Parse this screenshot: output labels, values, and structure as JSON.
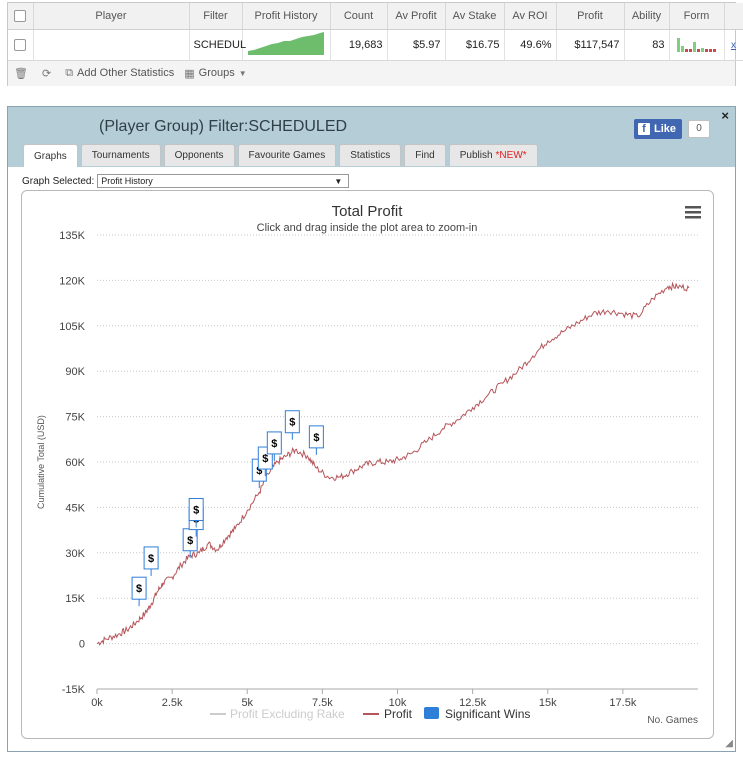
{
  "table": {
    "headers": [
      "",
      "Player",
      "Filter",
      "Profit History",
      "Count",
      "Av Profit",
      "Av Stake",
      "Av ROI",
      "Profit",
      "Ability",
      "Form",
      ""
    ],
    "row": {
      "filter": "SCHEDUL",
      "count": "19,683",
      "av_profit": "$5.97",
      "av_stake": "$16.75",
      "av_roi": "49.6%",
      "profit": "$117,547",
      "ability": "83",
      "remove": "x"
    }
  },
  "toolbar": {
    "add_stats": "Add Other Statistics",
    "groups": "Groups"
  },
  "panel": {
    "title": "(Player Group) Filter:SCHEDULED",
    "close": "×",
    "fb_like": "Like",
    "fb_count": "0",
    "tabs": [
      {
        "label": "Graphs"
      },
      {
        "label": "Tournaments"
      },
      {
        "label": "Opponents"
      },
      {
        "label": "Favourite Games"
      },
      {
        "label": "Statistics"
      },
      {
        "label": "Find"
      },
      {
        "label": "Publish",
        "badge": "*NEW*"
      }
    ],
    "graph_select_label": "Graph Selected:",
    "graph_select_value": "Profit History"
  },
  "colors": {
    "profit_line": "#b5565a",
    "excl_rake_line": "#cccccc",
    "significant_wins": "#2f7ed8",
    "sparkline": "#6dbd6d",
    "header_bg": "#b5cdd6"
  },
  "chart_data": {
    "type": "line",
    "title": "Total Profit",
    "subtitle": "Click and drag inside the plot area to zoom-in",
    "xlabel": "No. Games",
    "ylabel": "Cumulative Total (USD)",
    "xlim": [
      0,
      20000
    ],
    "ylim": [
      -15000,
      135000
    ],
    "x_ticks": [
      "0k",
      "2.5k",
      "5k",
      "7.5k",
      "10k",
      "12.5k",
      "15k",
      "17.5k"
    ],
    "y_ticks": [
      "-15K",
      "0",
      "15K",
      "30K",
      "45K",
      "60K",
      "75K",
      "90K",
      "105K",
      "120K",
      "135K"
    ],
    "grid": "horizontal-dotted",
    "legend": {
      "placement": "bottom-center",
      "items": [
        "Profit Excluding Rake",
        "Profit",
        "Significant Wins"
      ]
    },
    "series": [
      {
        "name": "Profit",
        "x": [
          0,
          300,
          700,
          1000,
          1300,
          1600,
          1800,
          2000,
          2200,
          2500,
          2800,
          3100,
          3400,
          3700,
          4000,
          4300,
          4600,
          5000,
          5400,
          5700,
          6000,
          6300,
          6600,
          7000,
          7300,
          7700,
          8100,
          8500,
          8900,
          9300,
          9700,
          10100,
          10500,
          11000,
          11500,
          12000,
          12500,
          13000,
          13500,
          14000,
          14500,
          15000,
          15500,
          16000,
          16500,
          17000,
          17500,
          18000,
          18500,
          19000,
          19300,
          19700
        ],
        "y": [
          0,
          1500,
          3000,
          4500,
          7000,
          10000,
          13000,
          17000,
          20000,
          22000,
          26000,
          29000,
          30000,
          33000,
          31000,
          35000,
          38000,
          44000,
          50000,
          56000,
          60000,
          62000,
          64000,
          62000,
          58000,
          55000,
          55000,
          57000,
          59000,
          60000,
          60000,
          61000,
          63000,
          67000,
          71000,
          74000,
          78000,
          82000,
          86000,
          90000,
          95000,
          100000,
          103000,
          106000,
          109000,
          110000,
          109000,
          108000,
          114000,
          118000,
          118000,
          117500
        ]
      },
      {
        "name": "Significant Wins",
        "x": [
          1600,
          2000,
          3300,
          3500,
          3500,
          5600,
          5800,
          6100,
          6700,
          7500
        ],
        "y": [
          15000,
          25000,
          31000,
          38000,
          41000,
          54000,
          58000,
          63000,
          70000,
          65000
        ],
        "label": "$"
      }
    ]
  }
}
